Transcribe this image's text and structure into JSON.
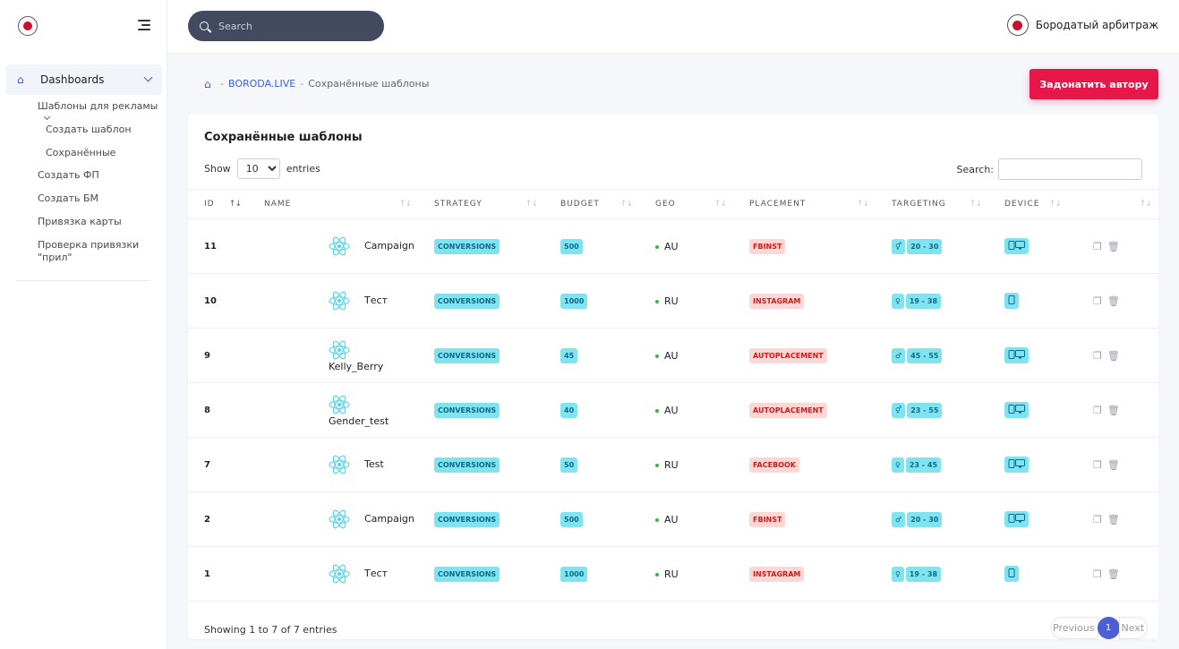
{
  "sidebar": {
    "dashboards_label": "Dashboards",
    "templates_label": "Шаблоны для рекламы",
    "create_template": "Создать шаблон",
    "saved": "Сохранённые",
    "create_fp": "Создать ФП",
    "create_bm": "Создать БМ",
    "card_link": "Привязка карты",
    "check_link_1": "Проверка привязки",
    "check_link_2": "\"прил\""
  },
  "header": {
    "search_placeholder": "Search",
    "user_name": "Бородатый арбитраж"
  },
  "breadcrumb": {
    "sep": "-",
    "root": "BORODA.LIVE",
    "current": "Сохранённые шаблоны"
  },
  "donate_label": "Задонатить автору",
  "card": {
    "title": "Сохранённые шаблоны",
    "show_label": "Show",
    "entries_label": "entries",
    "page_size": "10",
    "search_label": "Search:",
    "info": "Showing 1 to 7 of 7 entries"
  },
  "columns": {
    "id": "ID",
    "name": "NAME",
    "strategy": "STRATEGY",
    "budget": "BUDGET",
    "geo": "GEO",
    "placement": "PLACEMENT",
    "targeting": "TARGETING",
    "device": "DEVICE"
  },
  "rows": [
    {
      "id": "11",
      "name": "Campaign",
      "strategy": "CONVERSIONS",
      "budget": "500",
      "geo": "AU",
      "placement": "FBINST",
      "gender": "⚥",
      "age": "20 - 30",
      "device": "phone-desktop"
    },
    {
      "id": "10",
      "name": "Тест",
      "strategy": "CONVERSIONS",
      "budget": "1000",
      "geo": "RU",
      "placement": "INSTAGRAM",
      "gender": "♀",
      "age": "19 - 38",
      "device": "phone"
    },
    {
      "id": "9",
      "name": "Kelly_Berry",
      "strategy": "CONVERSIONS",
      "budget": "45",
      "geo": "AU",
      "placement": "AUTOPLACEMENT",
      "gender": "♂",
      "age": "45 - 55",
      "device": "phone-desktop"
    },
    {
      "id": "8",
      "name": "Gender_test",
      "strategy": "CONVERSIONS",
      "budget": "40",
      "geo": "AU",
      "placement": "AUTOPLACEMENT",
      "gender": "⚥",
      "age": "23 - 55",
      "device": "phone-desktop"
    },
    {
      "id": "7",
      "name": "Test",
      "strategy": "CONVERSIONS",
      "budget": "50",
      "geo": "RU",
      "placement": "FACEBOOK",
      "gender": "♀",
      "age": "23 - 45",
      "device": "phone-desktop"
    },
    {
      "id": "2",
      "name": "Campaign",
      "strategy": "CONVERSIONS",
      "budget": "500",
      "geo": "AU",
      "placement": "FBINST",
      "gender": "♂",
      "age": "20 - 30",
      "device": "phone-desktop"
    },
    {
      "id": "1",
      "name": "Тест",
      "strategy": "CONVERSIONS",
      "budget": "1000",
      "geo": "RU",
      "placement": "INSTAGRAM",
      "gender": "♀",
      "age": "19 - 38",
      "device": "phone"
    }
  ],
  "pager": {
    "previous": "Previous",
    "current": "1",
    "next": "Next"
  },
  "colors": {
    "accent": "#3b61e6",
    "donate": "#e8174a",
    "badge_cyan": "#7fe3f0",
    "badge_red": "#fdd7d5",
    "pager_active": "#4e5fd3"
  }
}
